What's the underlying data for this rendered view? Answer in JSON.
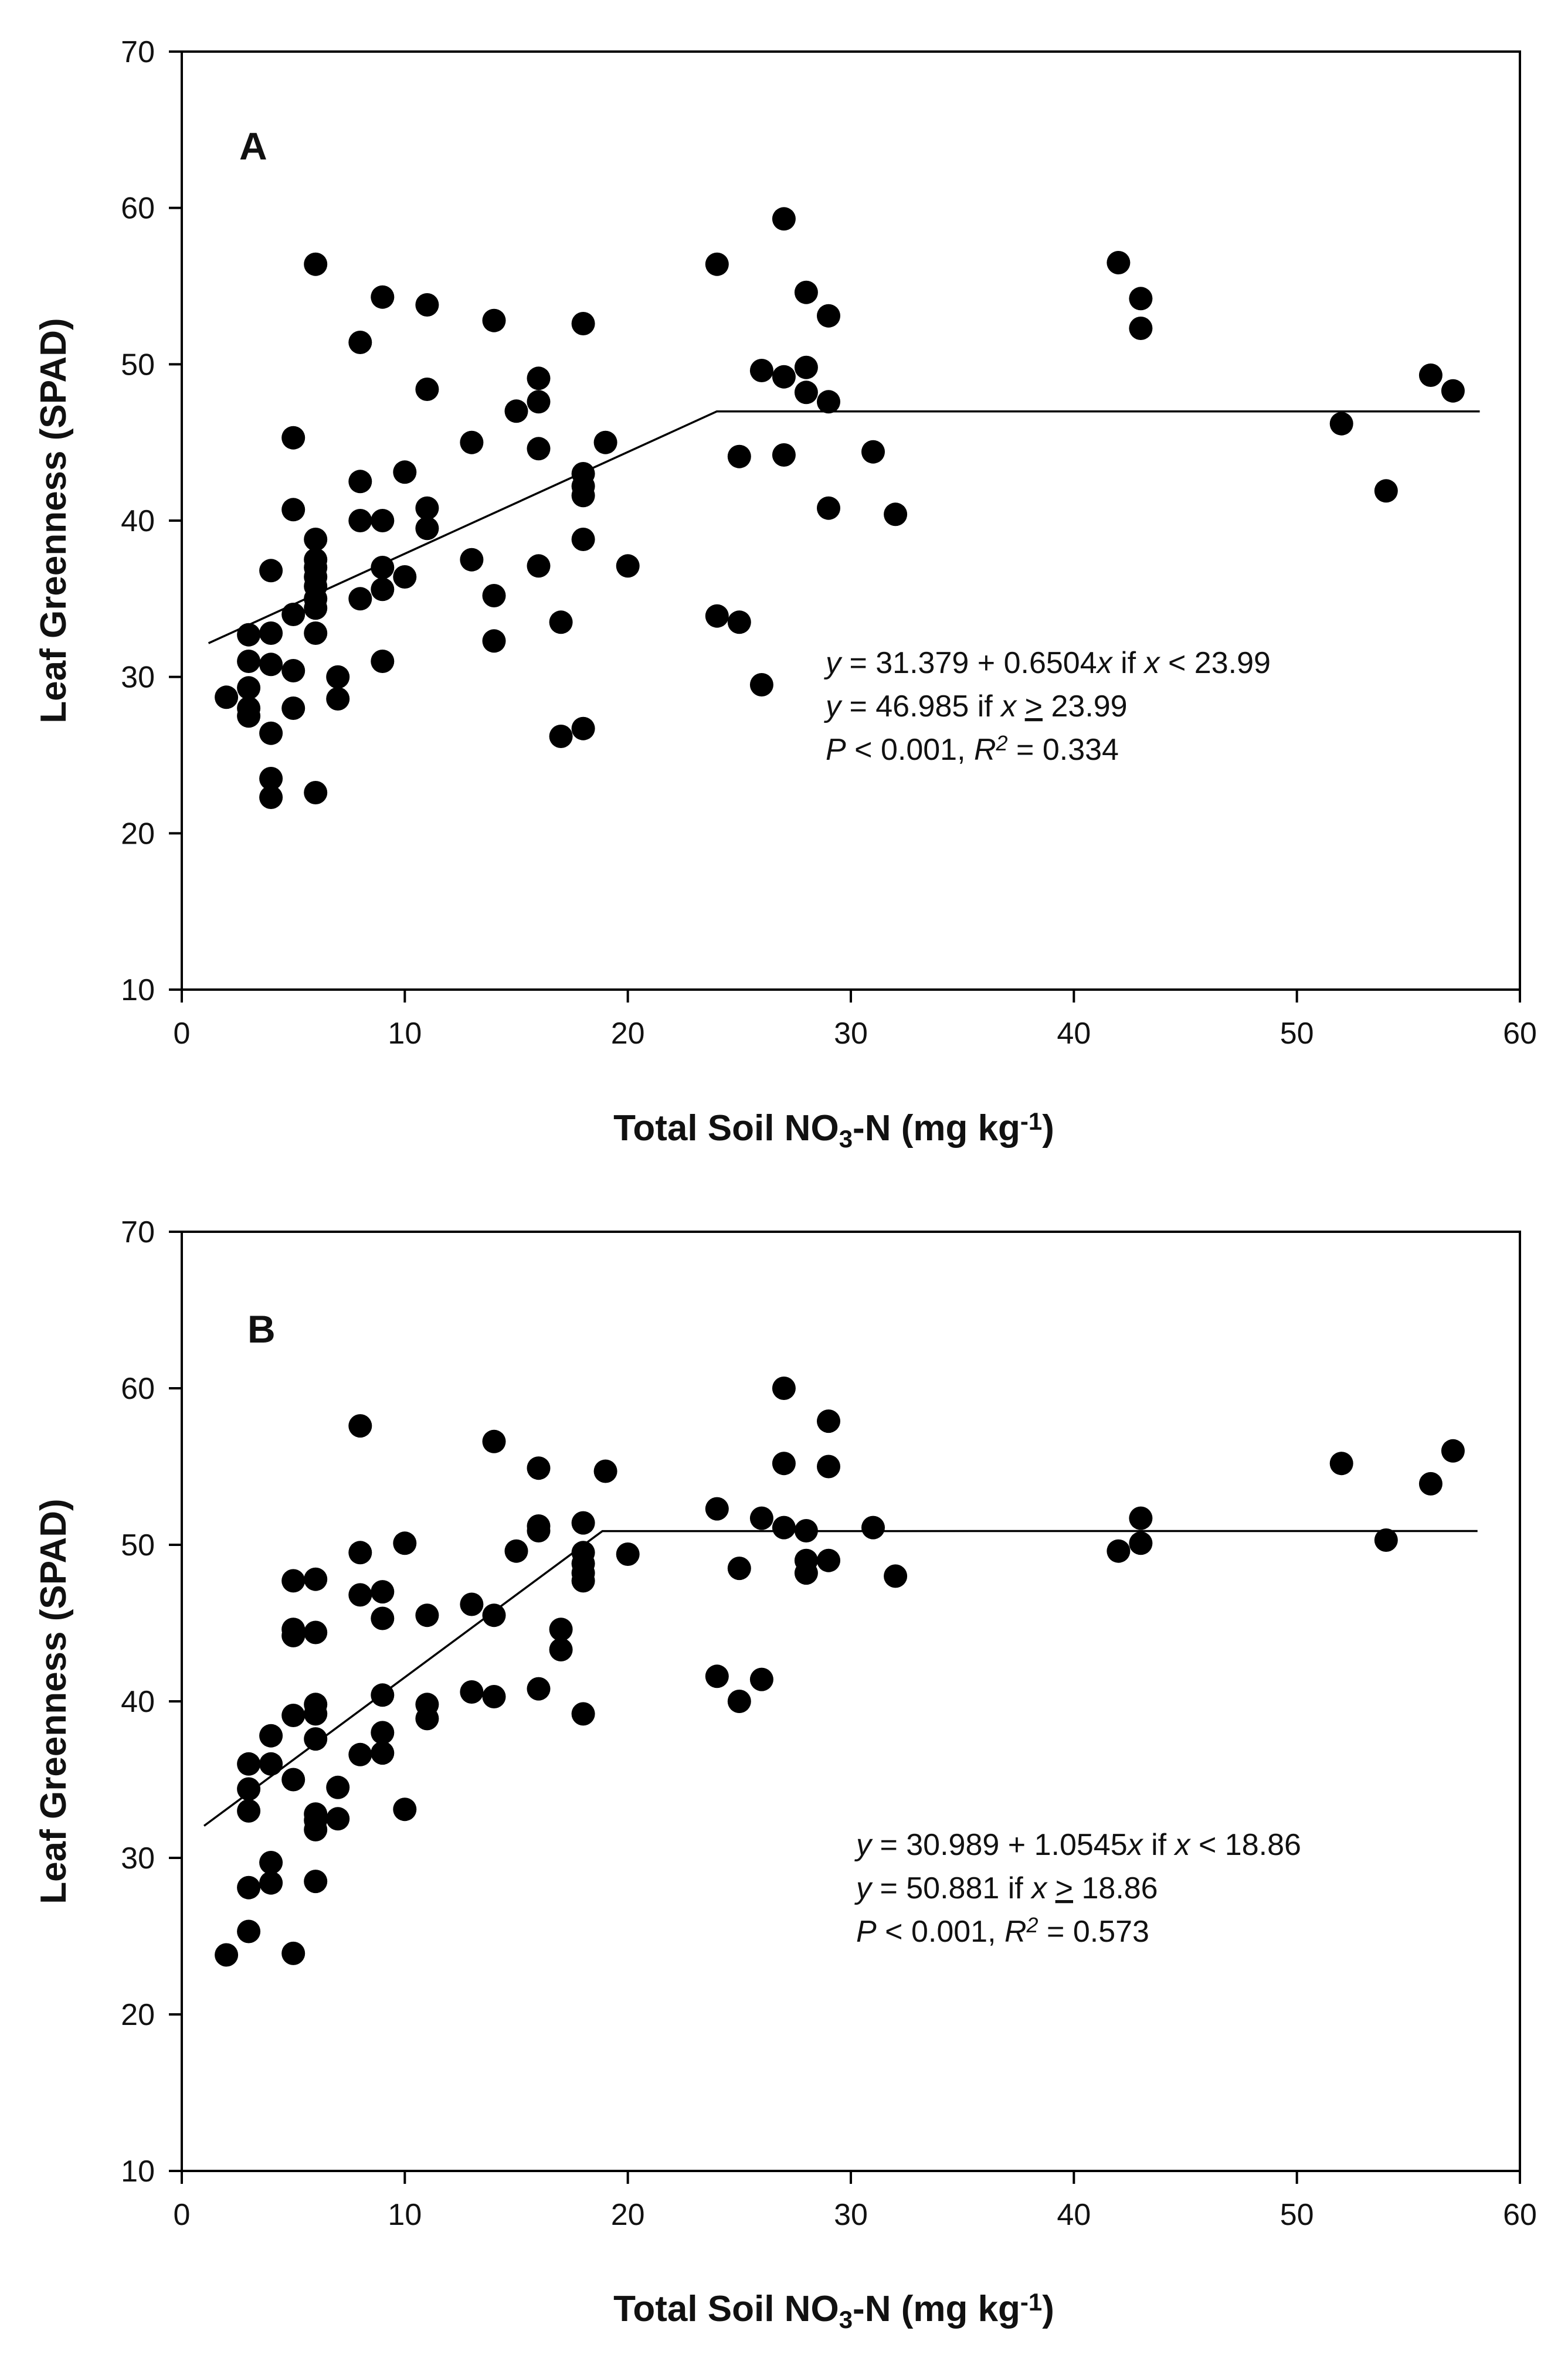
{
  "chart_data": [
    {
      "type": "scatter",
      "panel_label": "A",
      "title": "",
      "xlabel": "Total Soil NO3-N (mg kg-1)",
      "xlabel_parts": {
        "main": "Total Soil NO",
        "sub": "3",
        "mid": "-N (mg kg",
        "sup": "-1",
        "end": ")"
      },
      "ylabel": "Leaf Greenness (SPAD)",
      "xlim": [
        0,
        60
      ],
      "ylim": [
        10,
        70
      ],
      "xticks": [
        0,
        10,
        20,
        30,
        40,
        50,
        60
      ],
      "yticks": [
        10,
        20,
        30,
        40,
        50,
        60,
        70
      ],
      "grid": false,
      "points": [
        [
          2,
          28.7
        ],
        [
          3,
          32.7
        ],
        [
          3,
          31
        ],
        [
          3,
          29.3
        ],
        [
          3,
          28
        ],
        [
          3,
          27.5
        ],
        [
          4,
          36.8
        ],
        [
          4,
          32.8
        ],
        [
          4,
          30.8
        ],
        [
          4,
          26.4
        ],
        [
          4,
          23.5
        ],
        [
          4,
          22.3
        ],
        [
          5,
          45.3
        ],
        [
          5,
          40.7
        ],
        [
          5,
          34
        ],
        [
          5,
          30.4
        ],
        [
          5,
          28
        ],
        [
          6,
          56.4
        ],
        [
          6,
          38.8
        ],
        [
          6,
          37.5
        ],
        [
          6,
          37
        ],
        [
          6,
          36.4
        ],
        [
          6,
          35.8
        ],
        [
          6,
          35
        ],
        [
          6,
          34.4
        ],
        [
          6,
          32.8
        ],
        [
          6,
          22.6
        ],
        [
          7,
          30
        ],
        [
          7,
          28.6
        ],
        [
          8,
          51.4
        ],
        [
          8,
          42.5
        ],
        [
          8,
          40
        ],
        [
          8,
          35
        ],
        [
          9,
          54.3
        ],
        [
          9,
          40
        ],
        [
          9,
          37
        ],
        [
          9,
          35.6
        ],
        [
          9,
          31
        ],
        [
          10,
          43.1
        ],
        [
          10,
          36.4
        ],
        [
          11,
          53.8
        ],
        [
          11,
          48.4
        ],
        [
          11,
          40.8
        ],
        [
          11,
          39.5
        ],
        [
          13,
          45
        ],
        [
          13,
          37.5
        ],
        [
          14,
          52.8
        ],
        [
          14,
          35.2
        ],
        [
          14,
          32.3
        ],
        [
          15,
          47
        ],
        [
          16,
          49.1
        ],
        [
          16,
          47.6
        ],
        [
          16,
          44.6
        ],
        [
          16,
          37.1
        ],
        [
          17,
          33.5
        ],
        [
          17,
          26.2
        ],
        [
          18,
          52.6
        ],
        [
          18,
          43
        ],
        [
          18,
          42.2
        ],
        [
          18,
          41.6
        ],
        [
          18,
          38.8
        ],
        [
          18,
          26.7
        ],
        [
          19,
          45
        ],
        [
          20,
          37.1
        ],
        [
          24,
          56.4
        ],
        [
          24,
          33.9
        ],
        [
          25,
          44.1
        ],
        [
          25,
          33.5
        ],
        [
          26,
          49.6
        ],
        [
          26,
          29.5
        ],
        [
          27,
          59.3
        ],
        [
          27,
          49.2
        ],
        [
          27,
          44.2
        ],
        [
          28,
          54.6
        ],
        [
          28,
          49.8
        ],
        [
          28,
          48.2
        ],
        [
          29,
          53.1
        ],
        [
          29,
          47.6
        ],
        [
          29,
          40.8
        ],
        [
          31,
          44.4
        ],
        [
          32,
          40.4
        ],
        [
          42,
          56.5
        ],
        [
          43,
          54.2
        ],
        [
          43,
          52.3
        ],
        [
          52,
          46.2
        ],
        [
          54,
          41.9
        ],
        [
          56,
          49.3
        ],
        [
          57,
          48.3
        ]
      ],
      "fit": {
        "intercept": 31.379,
        "slope": 0.6504,
        "breakpoint": 23.99,
        "plateau": 46.985,
        "x_start": 1.2,
        "x_end": 58.2
      },
      "annotation": [
        {
          "v": "y",
          "text": " = 31.379 + 0.6504",
          "v2": "x",
          "text2": " if ",
          "v3": "x",
          "text3": " < 23.99",
          "underline_ge": false
        },
        {
          "v": "y",
          "text": " = 46.985 if ",
          "v2": "x",
          "text2": " ",
          "ge": ">",
          "text3": " 23.99"
        },
        {
          "p": "P",
          "p_text": " < 0.001, ",
          "r": "R",
          "r_sup": "2",
          "r_text": " = 0.334"
        }
      ]
    },
    {
      "type": "scatter",
      "panel_label": "B",
      "title": "",
      "xlabel": "Total Soil NO3-N (mg kg-1)",
      "xlabel_parts": {
        "main": "Total Soil NO",
        "sub": "3",
        "mid": "-N (mg kg",
        "sup": "-1",
        "end": ")"
      },
      "ylabel": "Leaf Greenness (SPAD)",
      "xlim": [
        0,
        60
      ],
      "ylim": [
        10,
        70
      ],
      "xticks": [
        0,
        10,
        20,
        30,
        40,
        50,
        60
      ],
      "yticks": [
        10,
        20,
        30,
        40,
        50,
        60,
        70
      ],
      "grid": false,
      "points": [
        [
          2,
          23.8
        ],
        [
          3,
          36
        ],
        [
          3,
          34.4
        ],
        [
          3,
          33
        ],
        [
          3,
          28.1
        ],
        [
          3,
          25.3
        ],
        [
          4,
          37.8
        ],
        [
          4,
          36
        ],
        [
          4,
          29.7
        ],
        [
          4,
          28.4
        ],
        [
          5,
          47.7
        ],
        [
          5,
          44.6
        ],
        [
          5,
          44.2
        ],
        [
          5,
          39.1
        ],
        [
          5,
          35
        ],
        [
          5,
          23.9
        ],
        [
          6,
          47.8
        ],
        [
          6,
          44.4
        ],
        [
          6,
          39.8
        ],
        [
          6,
          39.2
        ],
        [
          6,
          37.6
        ],
        [
          6,
          32.8
        ],
        [
          6,
          32.4
        ],
        [
          6,
          31.8
        ],
        [
          6,
          28.5
        ],
        [
          7,
          34.5
        ],
        [
          7,
          32.5
        ],
        [
          8,
          57.6
        ],
        [
          8,
          49.5
        ],
        [
          8,
          46.8
        ],
        [
          8,
          36.6
        ],
        [
          9,
          47
        ],
        [
          9,
          45.3
        ],
        [
          9,
          40.4
        ],
        [
          9,
          38
        ],
        [
          9,
          36.7
        ],
        [
          10,
          50.1
        ],
        [
          10,
          33.1
        ],
        [
          11,
          45.5
        ],
        [
          11,
          39.8
        ],
        [
          11,
          38.9
        ],
        [
          13,
          46.2
        ],
        [
          13,
          40.6
        ],
        [
          14,
          56.6
        ],
        [
          14,
          45.5
        ],
        [
          14,
          40.3
        ],
        [
          15,
          49.6
        ],
        [
          16,
          54.9
        ],
        [
          16,
          51.2
        ],
        [
          16,
          50.9
        ],
        [
          16,
          40.8
        ],
        [
          17,
          44.6
        ],
        [
          17,
          43.3
        ],
        [
          18,
          51.4
        ],
        [
          18,
          49.5
        ],
        [
          18,
          48.8
        ],
        [
          18,
          48.2
        ],
        [
          18,
          47.7
        ],
        [
          18,
          39.2
        ],
        [
          19,
          54.7
        ],
        [
          20,
          49.4
        ],
        [
          24,
          52.3
        ],
        [
          24,
          41.6
        ],
        [
          25,
          48.5
        ],
        [
          25,
          40
        ],
        [
          26,
          51.7
        ],
        [
          26,
          41.4
        ],
        [
          27,
          60
        ],
        [
          27,
          55.2
        ],
        [
          27,
          51.1
        ],
        [
          28,
          50.9
        ],
        [
          28,
          49
        ],
        [
          28,
          48.2
        ],
        [
          29,
          57.9
        ],
        [
          29,
          55
        ],
        [
          29,
          49
        ],
        [
          31,
          51.1
        ],
        [
          32,
          48
        ],
        [
          42,
          49.6
        ],
        [
          43,
          51.7
        ],
        [
          43,
          50.1
        ],
        [
          52,
          55.2
        ],
        [
          54,
          50.3
        ],
        [
          56,
          53.9
        ],
        [
          57,
          56
        ]
      ],
      "fit": {
        "intercept": 30.989,
        "slope": 1.0545,
        "breakpoint": 18.86,
        "plateau": 50.881,
        "x_start": 1.0,
        "x_end": 58.1
      },
      "annotation": [
        {
          "v": "y",
          "text": " = 30.989 + 1.0545",
          "v2": "x",
          "text2": " if ",
          "v3": "x",
          "text3": " < 18.86"
        },
        {
          "v": "y",
          "text": " = 50.881 if ",
          "v2": "x",
          "text2": " ",
          "ge": ">",
          "text3": " 18.86"
        },
        {
          "p": "P",
          "p_text": " < 0.001, ",
          "r": "R",
          "r_sup": "2",
          "r_text": " = 0.573"
        }
      ]
    }
  ]
}
